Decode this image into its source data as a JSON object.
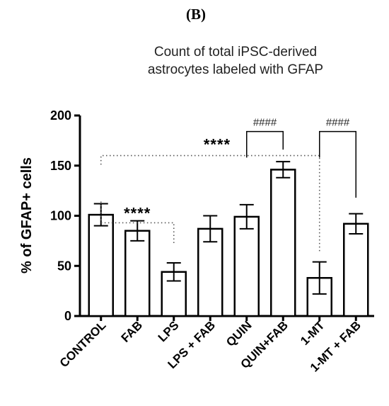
{
  "panel_label": "(B)",
  "chart_data": {
    "type": "bar",
    "title": [
      "Count of total iPSC-derived",
      "astrocytes labeled with GFAP"
    ],
    "xlabel": "",
    "ylabel": "% of GFAP+ cells",
    "ylim": [
      0,
      200
    ],
    "yticks": [
      0,
      50,
      100,
      150,
      200
    ],
    "categories": [
      "CONTROL",
      "FAB",
      "LPS",
      "LPS + FAB",
      "QUIN",
      "QUIN+FAB",
      "1-MT",
      "1-MT + FAB"
    ],
    "values": [
      101,
      85,
      44,
      87,
      99,
      146,
      38,
      92
    ],
    "errors": [
      11,
      10,
      9,
      13,
      12,
      8,
      16,
      10
    ],
    "grid": false,
    "legend": "none",
    "annotations": [
      {
        "from": "CONTROL",
        "to": "LPS",
        "label": "****",
        "style": "dotted"
      },
      {
        "from": "CONTROL",
        "to": "1-MT",
        "label": "****",
        "style": "dotted"
      },
      {
        "from": "QUIN",
        "to": "QUIN+FAB",
        "label": "####",
        "style": "bracket"
      },
      {
        "from": "1-MT",
        "to": "1-MT + FAB",
        "label": "####",
        "style": "bracket"
      }
    ]
  }
}
